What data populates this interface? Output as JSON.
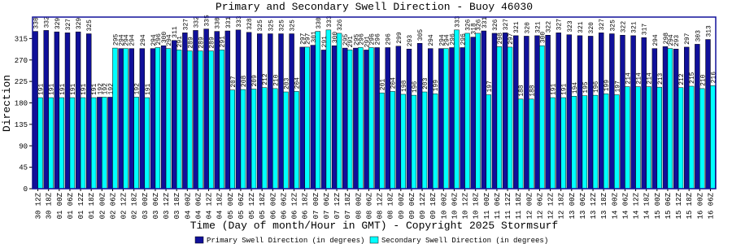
{
  "chart_data": {
    "type": "bar",
    "title": "Primary and Secondary Swell Direction - Buoy 46030",
    "x_label": "Time (Day of month/Hour in GMT) - Copyright 2025 Stormsurf",
    "y_label": "Direction",
    "categories": [
      "30 12Z",
      "30 18Z",
      "01 00Z",
      "01 06Z",
      "01 12Z",
      "01 18Z",
      "02 00Z",
      "02 06Z",
      "02 12Z",
      "02 18Z",
      "03 00Z",
      "03 06Z",
      "03 12Z",
      "03 18Z",
      "04 00Z",
      "04 06Z",
      "04 12Z",
      "04 18Z",
      "05 00Z",
      "05 06Z",
      "05 12Z",
      "05 18Z",
      "06 00Z",
      "06 06Z",
      "06 12Z",
      "06 18Z",
      "07 00Z",
      "07 06Z",
      "07 12Z",
      "07 18Z",
      "08 00Z",
      "08 06Z",
      "08 12Z",
      "08 18Z",
      "09 00Z",
      "09 06Z",
      "09 12Z",
      "09 18Z",
      "10 00Z",
      "10 06Z",
      "10 12Z",
      "10 18Z",
      "11 00Z",
      "11 06Z",
      "11 12Z",
      "11 18Z",
      "12 00Z",
      "12 06Z",
      "12 12Z",
      "12 18Z",
      "13 00Z",
      "13 06Z",
      "13 12Z",
      "13 18Z",
      "14 00Z",
      "14 06Z",
      "14 12Z",
      "14 18Z",
      "15 00Z",
      "15 06Z",
      "15 12Z",
      "15 18Z",
      "16 00Z",
      "16 06Z"
    ],
    "series": [
      {
        "name": "Primary Swell Direction (in degrees)",
        "color": "#10109a",
        "values": [
          330,
          332,
          329,
          327,
          329,
          325,
          192,
          192,
          294,
          294,
          294,
          294,
          300,
          311,
          327,
          332,
          335,
          330,
          331,
          333,
          328,
          325,
          325,
          325,
          325,
          297,
          301,
          291,
          300,
          295,
          295,
          291,
          296,
          296,
          299,
          293,
          305,
          294,
          294,
          296,
          296,
          318,
          331,
          326,
          327,
          321,
          320,
          321,
          322,
          327,
          323,
          321,
          320,
          327,
          325,
          322,
          321,
          317,
          294,
          298,
          293,
          297,
          303,
          313
        ]
      },
      {
        "name": "Secondary Swell Direction (in degrees)",
        "color": "#00ffff",
        "values": [
          191,
          191,
          191,
          191,
          191,
          191,
          192,
          295,
          294,
          192,
          191,
          296,
          294,
          291,
          289,
          289,
          289,
          291,
          207,
          208,
          209,
          212,
          210,
          203,
          204,
          297,
          330,
          333,
          326,
          291,
          296,
          296,
          201,
          204,
          198,
          196,
          203,
          199,
          294,
          333,
          326,
          326,
          197,
          298,
          297,
          188,
          188,
          300,
          191,
          191,
          194,
          195,
          196,
          199,
          197,
          214,
          214,
          214,
          213,
          294,
          212,
          215,
          210,
          216
        ]
      }
    ],
    "ylim": [
      0,
      360
    ],
    "yticks": [
      0,
      45,
      90,
      135,
      180,
      225,
      270,
      315
    ]
  }
}
